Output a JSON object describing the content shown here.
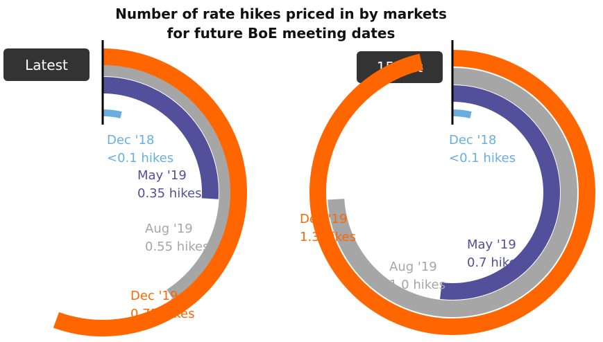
{
  "title": {
    "line1": "Number of rate hikes priced in by markets",
    "line2": "for future BoE meeting dates"
  },
  "colors": {
    "dec18": "#6aaee0",
    "may19": "#524f9b",
    "aug19": "#a6a6a6",
    "dec19": "#ff6600",
    "badge": "#333333"
  },
  "chart_data": [
    {
      "type": "radial-bar",
      "panel": "Latest",
      "series": [
        {
          "name": "Dec '18",
          "value": 0.05,
          "value_label": "<0.1 hikes",
          "color": "#6aaee0"
        },
        {
          "name": "May '19",
          "value": 0.35,
          "value_label": "0.35 hikes",
          "color": "#524f9b"
        },
        {
          "name": "Aug '19",
          "value": 0.55,
          "value_label": "0.55 hikes",
          "color": "#a6a6a6"
        },
        {
          "name": "Dec '19",
          "value": 0.75,
          "value_label": "0.75 hikes",
          "color": "#ff6600"
        }
      ]
    },
    {
      "type": "radial-bar",
      "panel": "15 Oct",
      "series": [
        {
          "name": "Dec '18",
          "value": 0.05,
          "value_label": "<0.1 hikes",
          "color": "#6aaee0"
        },
        {
          "name": "May '19",
          "value": 0.7,
          "value_label": "0.7 hikes",
          "color": "#524f9b"
        },
        {
          "name": "Aug '19",
          "value": 1.0,
          "value_label": "1.0 hikes",
          "color": "#a6a6a6"
        },
        {
          "name": "Dec '19",
          "value": 1.3,
          "value_label": "1.3 hikes",
          "color": "#ff6600"
        }
      ]
    }
  ]
}
